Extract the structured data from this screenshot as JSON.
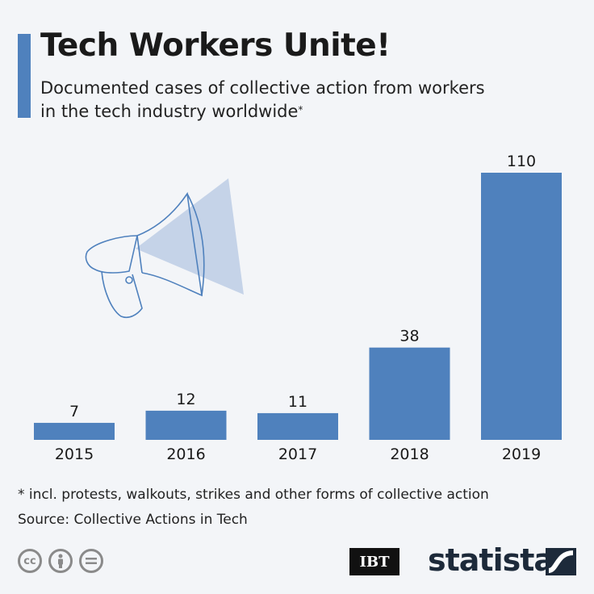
{
  "header": {
    "title": "Tech Workers Unite!",
    "subtitle": "Documented cases of collective action from workers in the tech industry worldwide",
    "subtitle_mark": "*"
  },
  "chart_data": {
    "type": "bar",
    "categories": [
      "2015",
      "2016",
      "2017",
      "2018",
      "2019"
    ],
    "values": [
      7,
      12,
      11,
      38,
      110
    ],
    "title": "Tech Workers Unite!",
    "xlabel": "",
    "ylabel": "",
    "ylim": [
      0,
      110
    ],
    "grid": false,
    "bar_color": "#4f81bd",
    "data_labels": true
  },
  "footer": {
    "footnote": "* incl. protests, walkouts, strikes and other forms of collective action",
    "source": "Source: Collective Actions in Tech",
    "license_icons": [
      "cc-icon",
      "attribution-icon",
      "no-derivatives-icon"
    ],
    "partner_logo": "IBT",
    "brand_logo": "statista"
  },
  "colors": {
    "background": "#f3f5f8",
    "accent": "#4f81bd",
    "illustration": "#c5d3e8"
  }
}
